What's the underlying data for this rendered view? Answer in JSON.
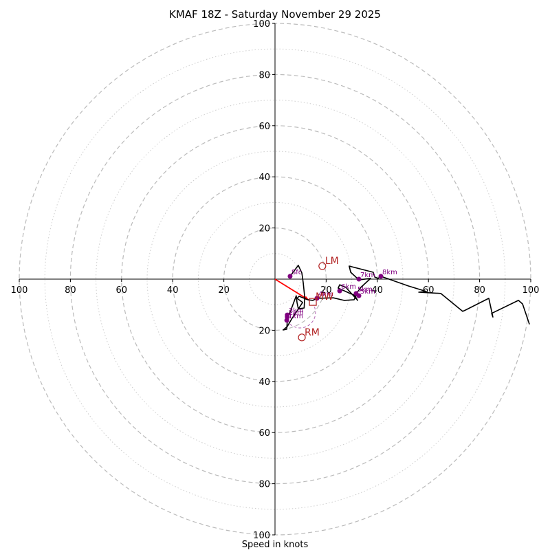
{
  "chart_data": {
    "type": "line",
    "subtype": "hodograph",
    "title": "KMAF 18Z - Saturday November 29 2025",
    "xlabel": "Speed in knots",
    "ylabel": "",
    "range_knots": [
      -100,
      100
    ],
    "rings_major": [
      20,
      40,
      60,
      80,
      100
    ],
    "rings_minor": [
      10,
      30,
      50,
      70,
      90
    ],
    "tick_labels": {
      "x": [
        "100",
        "80",
        "60",
        "40",
        "20",
        "20",
        "40",
        "60",
        "80",
        "100"
      ],
      "x_values": [
        -100,
        -80,
        -60,
        -40,
        -20,
        20,
        40,
        60,
        80,
        100
      ],
      "y": [
        "100",
        "80",
        "60",
        "40",
        "20",
        "20",
        "40",
        "60",
        "80",
        "100"
      ],
      "y_values": [
        100,
        80,
        60,
        40,
        20,
        -20,
        -40,
        -60,
        -80,
        -100
      ]
    },
    "grid": true,
    "trace": {
      "name": "hodograph",
      "color": "#000000",
      "u": [
        5.9,
        9.1,
        10.5,
        11.0,
        11.6,
        11.4,
        9.1,
        8.6,
        8.3,
        6.2,
        5.1,
        4.8,
        4.6,
        3.2,
        4.8,
        6.7,
        10.8,
        8.6,
        9.4,
        12.9,
        14.8,
        16.4,
        22.8,
        27.0,
        30.9,
        31.7,
        29.3,
        24.7,
        25.3,
        27.7,
        32.3,
        31.2,
        33.6,
        37.4,
        32.8,
        29.6,
        29.0,
        38.4,
        39.0,
        40.3,
        41.4,
        52.2,
        59.1,
        56.2,
        64.8,
        73.4,
        74.5,
        83.6,
        85.2,
        84.7,
        95.2,
        96.8,
        99.5
      ],
      "v": [
        1.1,
        5.4,
        2.4,
        -1.1,
        -7.0,
        -11.3,
        -11.6,
        -9.1,
        -6.5,
        -12.1,
        -14.5,
        -16.1,
        -19.6,
        -19.9,
        -18.5,
        -15.3,
        -9.1,
        -7.5,
        -6.7,
        -8.1,
        -8.3,
        -7.5,
        -7.3,
        -8.3,
        -8.1,
        -6.5,
        -5.6,
        -3.5,
        -2.2,
        -3.2,
        -8.3,
        -6.5,
        -3.2,
        0.3,
        -0.3,
        2.7,
        5.1,
        2.7,
        0.8,
        0.3,
        1.1,
        -2.7,
        -4.8,
        -5.1,
        -5.6,
        -12.6,
        -12.1,
        -7.5,
        -14.8,
        -13.4,
        -8.3,
        -9.7,
        -17.7
      ]
    },
    "height_markers": [
      {
        "label": "Sfc",
        "u": 5.9,
        "v": 1.1
      },
      {
        "label": "1km",
        "u": 4.6,
        "v": -16.1
      },
      {
        "label": "2km",
        "u": 4.8,
        "v": -14.8
      },
      {
        "label": "3km",
        "u": 4.8,
        "v": -14.0
      },
      {
        "label": "4km",
        "u": 16.4,
        "v": -7.5
      },
      {
        "label": "5km",
        "u": 31.7,
        "v": -5.6
      },
      {
        "label": "5km",
        "u": 32.8,
        "v": -6.5
      },
      {
        "label": "6km",
        "u": 25.3,
        "v": -4.6
      },
      {
        "label": "7km",
        "u": 32.8,
        "v": 0.0
      },
      {
        "label": "8km",
        "u": 41.4,
        "v": 1.1
      }
    ],
    "marker_color": "#800080",
    "storm_motions": [
      {
        "label": "LM",
        "u": 18.5,
        "v": 5.1,
        "symbol": "circle"
      },
      {
        "label": "RM",
        "u": 10.5,
        "v": -22.8,
        "symbol": "circle"
      },
      {
        "label": "MW",
        "u": 14.8,
        "v": -8.9,
        "symbol": "square"
      }
    ],
    "storm_color": "#b22222",
    "shear_vector": {
      "from": [
        0,
        0
      ],
      "to": [
        13.4,
        -8.3
      ],
      "color": "#ff0000"
    },
    "critical_arc": {
      "center": [
        10.5,
        -22.8
      ],
      "color": "#800080"
    }
  }
}
